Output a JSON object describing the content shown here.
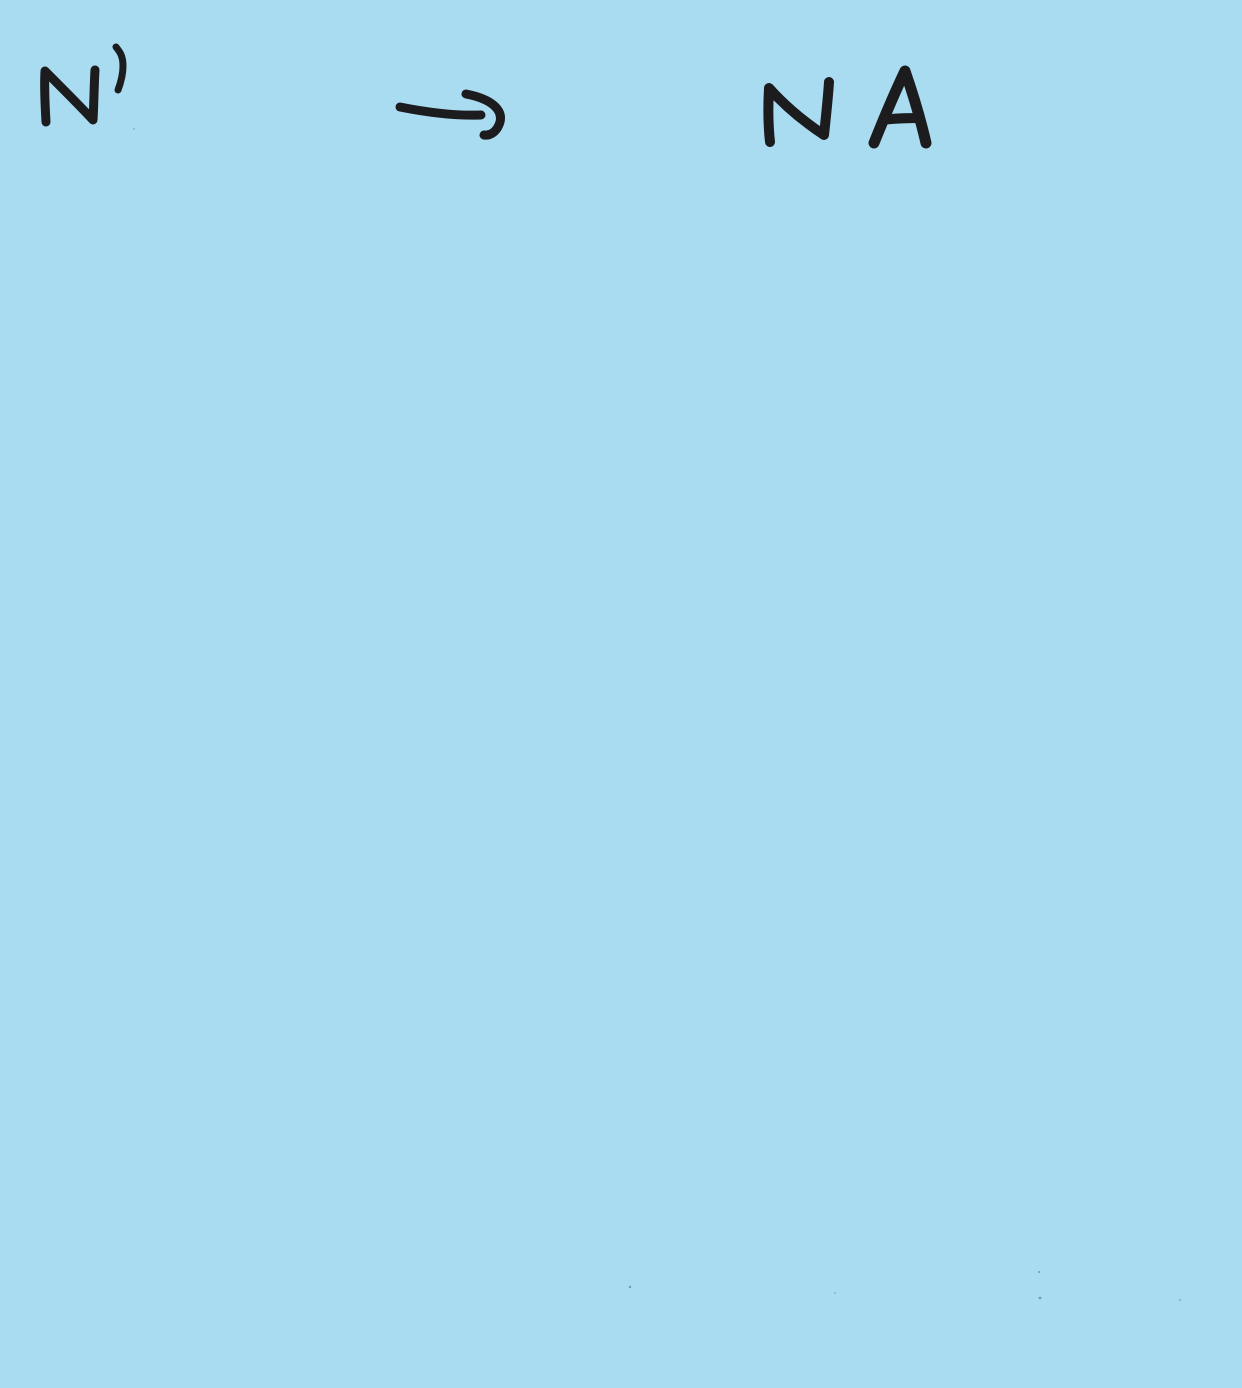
{
  "note": {
    "background_color": "#aadcf1",
    "ink_color": "#1c1c1e",
    "left_term": "N'",
    "arrow": "→",
    "right_term": "NA"
  }
}
